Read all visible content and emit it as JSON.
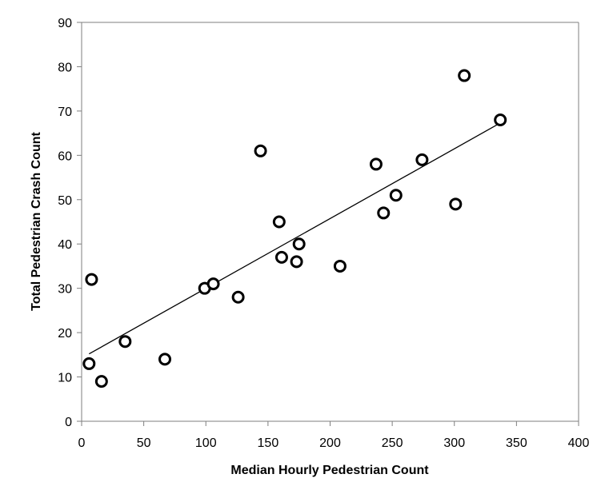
{
  "chart_data": {
    "type": "scatter",
    "title": "",
    "xlabel": "Median Hourly Pedestrian Count",
    "ylabel": "Total Pedestrian Crash Count",
    "xlim": [
      0,
      400
    ],
    "ylim": [
      0,
      90
    ],
    "xticks": [
      0,
      50,
      100,
      150,
      200,
      250,
      300,
      350,
      400
    ],
    "yticks": [
      0,
      10,
      20,
      30,
      40,
      50,
      60,
      70,
      80,
      90
    ],
    "xtick_labels": [
      "0",
      "50",
      "100",
      "150",
      "200",
      "250",
      "300",
      "350",
      "400"
    ],
    "ytick_labels": [
      "0",
      "10",
      "20",
      "30",
      "40",
      "50",
      "60",
      "70",
      "80",
      "90"
    ],
    "grid": false,
    "legend": "none",
    "marker": "open-circle",
    "colors": {
      "marker_edge": "#000000",
      "marker_fill": "#ffffff",
      "trendline": "#000000",
      "axis": "#7f7f7f"
    },
    "points": [
      {
        "x": 6,
        "y": 13
      },
      {
        "x": 8,
        "y": 32
      },
      {
        "x": 16,
        "y": 9
      },
      {
        "x": 35,
        "y": 18
      },
      {
        "x": 67,
        "y": 14
      },
      {
        "x": 99,
        "y": 30
      },
      {
        "x": 106,
        "y": 31
      },
      {
        "x": 126,
        "y": 28
      },
      {
        "x": 144,
        "y": 61
      },
      {
        "x": 159,
        "y": 45
      },
      {
        "x": 161,
        "y": 37
      },
      {
        "x": 173,
        "y": 36
      },
      {
        "x": 175,
        "y": 40
      },
      {
        "x": 208,
        "y": 35
      },
      {
        "x": 237,
        "y": 58
      },
      {
        "x": 243,
        "y": 47
      },
      {
        "x": 253,
        "y": 51
      },
      {
        "x": 274,
        "y": 59
      },
      {
        "x": 301,
        "y": 49
      },
      {
        "x": 308,
        "y": 78
      },
      {
        "x": 337,
        "y": 68
      }
    ],
    "trendline": {
      "type": "linear",
      "x": [
        6,
        337
      ],
      "y": [
        15.2,
        67.3
      ]
    }
  }
}
